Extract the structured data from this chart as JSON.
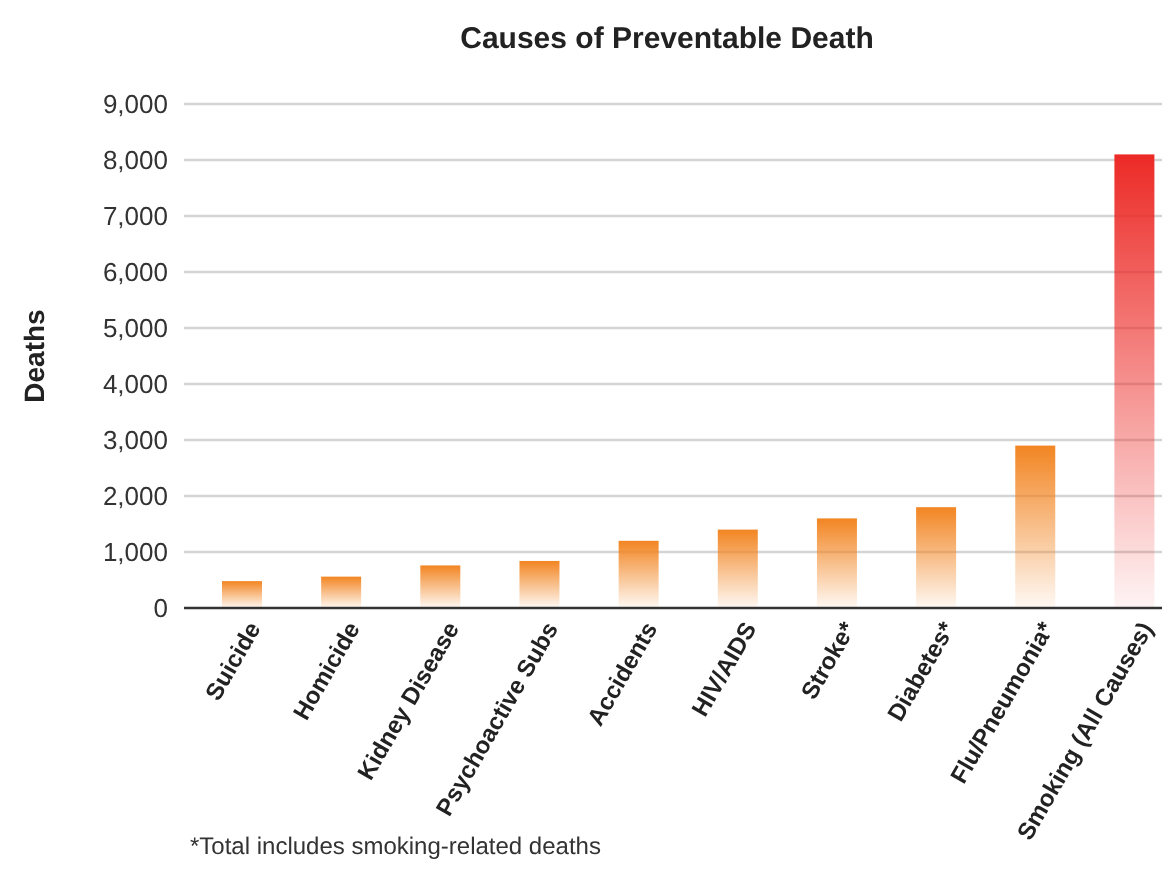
{
  "chart_data": {
    "type": "bar",
    "title": "Causes of Preventable Death",
    "ylabel": "Deaths",
    "categories": [
      "Suicide",
      "Homicide",
      "Kidney Disease",
      "Psychoactive Subs",
      "Accidents",
      "HIV/AIDS",
      "Stroke*",
      "Diabetes*",
      "Flu/Pneumonia*",
      "Smoking (All Causes)"
    ],
    "values": [
      480,
      560,
      760,
      840,
      1200,
      1400,
      1600,
      1800,
      2900,
      8100
    ],
    "colors": [
      "#f28522",
      "#f28522",
      "#f28522",
      "#f28522",
      "#f28522",
      "#f28522",
      "#f28522",
      "#f28522",
      "#f28522",
      "#ec2a26"
    ],
    "ylim": [
      0,
      9000
    ],
    "yticks": [
      {
        "value": 0,
        "label": "0"
      },
      {
        "value": 1000,
        "label": "1,000"
      },
      {
        "value": 2000,
        "label": "2,000"
      },
      {
        "value": 3000,
        "label": "3,000"
      },
      {
        "value": 4000,
        "label": "4,000"
      },
      {
        "value": 5000,
        "label": "5,000"
      },
      {
        "value": 6000,
        "label": "6,000"
      },
      {
        "value": 7000,
        "label": "7,000"
      },
      {
        "value": 8000,
        "label": "8,000"
      },
      {
        "value": 9000,
        "label": "9,000"
      }
    ],
    "grid": "y",
    "annotations": [
      "*Total includes smoking-related deaths"
    ]
  }
}
